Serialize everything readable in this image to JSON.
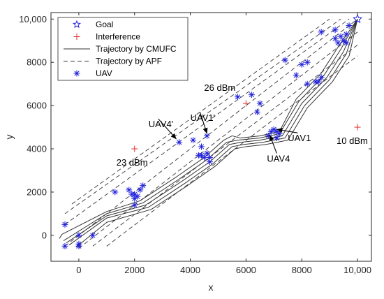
{
  "chart_data": {
    "type": "line",
    "xlabel": "x",
    "ylabel": "y",
    "xlim": [
      -1000,
      10500
    ],
    "ylim": [
      -1200,
      10300
    ],
    "xticks": [
      {
        "value": 0,
        "label": "0"
      },
      {
        "value": 2000,
        "label": "2000"
      },
      {
        "value": 4000,
        "label": "4000"
      },
      {
        "value": 6000,
        "label": "6000"
      },
      {
        "value": 8000,
        "label": "8000"
      },
      {
        "value": 10000,
        "label": "10,000"
      }
    ],
    "yticks": [
      {
        "value": 0,
        "label": "0"
      },
      {
        "value": 2000,
        "label": "2000"
      },
      {
        "value": 4000,
        "label": "4000"
      },
      {
        "value": 6000,
        "label": "6000"
      },
      {
        "value": 8000,
        "label": "8000"
      },
      {
        "value": 10000,
        "label": "10,000"
      }
    ],
    "legend": {
      "position": "top-left",
      "entries": [
        {
          "label": "Goal",
          "marker": "star",
          "color": "#1f1fdc"
        },
        {
          "label": "Interference",
          "marker": "plus",
          "color": "#e03030"
        },
        {
          "label": "Trajectory by CMUFC",
          "marker": "solid-line",
          "color": "#333333"
        },
        {
          "label": "Trajectory by APF",
          "marker": "dashed-line",
          "color": "#333333"
        },
        {
          "label": "UAV",
          "marker": "asterisk",
          "color": "#1f1fdc"
        }
      ]
    },
    "colors": {
      "uav": "#1f1fdc",
      "interference": "#e03030",
      "line": "#333333",
      "axis": "#262626"
    },
    "goal": {
      "x": 10000,
      "y": 10000
    },
    "interference": [
      {
        "x": 2000,
        "y": 4000,
        "label": "23 dBm"
      },
      {
        "x": 6000,
        "y": 6100,
        "label": "26 dBm"
      },
      {
        "x": 10000,
        "y": 5000,
        "label": "10 dBm"
      }
    ],
    "annotations": [
      {
        "text": "UAV1",
        "x": 7500,
        "y": 4350,
        "point_x": 7100,
        "point_y": 4900
      },
      {
        "text": "UAV4",
        "x": 6750,
        "y": 3400,
        "point_x": 6850,
        "point_y": 4650
      },
      {
        "text": "UAV1'",
        "x": 4000,
        "y": 5300,
        "point_x": 4600,
        "point_y": 4700
      },
      {
        "text": "UAV4'",
        "x": 2500,
        "y": 5000,
        "point_x": 3500,
        "point_y": 4450
      }
    ],
    "cmufc_trajectories": [
      [
        [
          -700,
          -150
        ],
        [
          -600,
          50
        ],
        [
          1000,
          1100
        ],
        [
          2200,
          1600
        ],
        [
          3500,
          2700
        ],
        [
          4500,
          3600
        ],
        [
          5200,
          4400
        ],
        [
          5500,
          4600
        ],
        [
          5800,
          4500
        ],
        [
          6500,
          4600
        ],
        [
          7200,
          4800
        ],
        [
          7800,
          6300
        ],
        [
          8700,
          7500
        ],
        [
          9300,
          8700
        ],
        [
          10000,
          10000
        ]
      ],
      [
        [
          -550,
          -250
        ],
        [
          1000,
          1000
        ],
        [
          2300,
          1500
        ],
        [
          3600,
          2600
        ],
        [
          4600,
          3500
        ],
        [
          5300,
          4300
        ],
        [
          5700,
          4400
        ],
        [
          6500,
          4500
        ],
        [
          7200,
          4700
        ],
        [
          7900,
          6200
        ],
        [
          8800,
          7400
        ],
        [
          9400,
          8600
        ],
        [
          10000,
          10000
        ]
      ],
      [
        [
          -450,
          -350
        ],
        [
          1000,
          900
        ],
        [
          2400,
          1400
        ],
        [
          3700,
          2500
        ],
        [
          4700,
          3400
        ],
        [
          5400,
          4200
        ],
        [
          5800,
          4300
        ],
        [
          6500,
          4400
        ],
        [
          7300,
          4600
        ],
        [
          8000,
          6100
        ],
        [
          8900,
          7300
        ],
        [
          9500,
          8500
        ],
        [
          10000,
          10000
        ]
      ],
      [
        [
          -350,
          -450
        ],
        [
          1000,
          800
        ],
        [
          2500,
          1300
        ],
        [
          3800,
          2400
        ],
        [
          4800,
          3300
        ],
        [
          5500,
          4100
        ],
        [
          5900,
          4200
        ],
        [
          6600,
          4300
        ],
        [
          7400,
          4500
        ],
        [
          8100,
          6000
        ],
        [
          9000,
          7200
        ],
        [
          9600,
          8400
        ],
        [
          10000,
          10000
        ]
      ],
      [
        [
          -100,
          -550
        ],
        [
          1000,
          600
        ],
        [
          2600,
          1200
        ],
        [
          3900,
          2300
        ],
        [
          4900,
          3200
        ],
        [
          5600,
          4000
        ],
        [
          6000,
          4100
        ],
        [
          6700,
          4200
        ],
        [
          7500,
          4400
        ],
        [
          8200,
          5900
        ],
        [
          9100,
          7100
        ],
        [
          9700,
          8300
        ],
        [
          10000,
          10000
        ]
      ]
    ],
    "apf_trajectories": [
      [
        [
          -500,
          -500
        ],
        [
          10000,
          10000
        ]
      ],
      [
        [
          -500,
          500
        ],
        [
          9700,
          10000
        ]
      ],
      [
        [
          -500,
          1000
        ],
        [
          9400,
          10000
        ]
      ],
      [
        [
          -250,
          1450
        ],
        [
          9000,
          10000
        ]
      ],
      [
        [
          500,
          -500
        ],
        [
          10000,
          8800
        ]
      ],
      [
        [
          1000,
          -500
        ],
        [
          10000,
          8300
        ]
      ],
      [
        [
          0,
          -600
        ],
        [
          10000,
          9400
        ]
      ]
    ],
    "uav_points": [
      [
        -500,
        500
      ],
      [
        -500,
        -500
      ],
      [
        0,
        0
      ],
      [
        0,
        -400
      ],
      [
        0,
        -500
      ],
      [
        500,
        0
      ],
      [
        1300,
        2000
      ],
      [
        1800,
        2100
      ],
      [
        1900,
        1900
      ],
      [
        2000,
        1400
      ],
      [
        2000,
        1700
      ],
      [
        2100,
        1800
      ],
      [
        2200,
        2100
      ],
      [
        2300,
        2300
      ],
      [
        2000,
        1900
      ],
      [
        3600,
        4300
      ],
      [
        4100,
        4400
      ],
      [
        4400,
        4100
      ],
      [
        4600,
        4600
      ],
      [
        4400,
        3700
      ],
      [
        4500,
        3600
      ],
      [
        4600,
        3800
      ],
      [
        4700,
        3600
      ],
      [
        4700,
        3400
      ],
      [
        4300,
        3700
      ],
      [
        5700,
        6400
      ],
      [
        6200,
        6500
      ],
      [
        6500,
        6100
      ],
      [
        6400,
        5700
      ],
      [
        6900,
        4800
      ],
      [
        7000,
        4900
      ],
      [
        7100,
        4800
      ],
      [
        7200,
        4700
      ],
      [
        7100,
        4500
      ],
      [
        6800,
        4600
      ],
      [
        7400,
        8100
      ],
      [
        7800,
        7400
      ],
      [
        8000,
        7900
      ],
      [
        8200,
        8000
      ],
      [
        8200,
        7000
      ],
      [
        8500,
        7100
      ],
      [
        8700,
        7300
      ],
      [
        8600,
        7100
      ],
      [
        8700,
        9400
      ],
      [
        9200,
        9500
      ],
      [
        9300,
        8900
      ],
      [
        9400,
        9200
      ],
      [
        9500,
        9000
      ],
      [
        9600,
        8900
      ],
      [
        9700,
        9700
      ],
      [
        9600,
        9300
      ],
      [
        9200,
        9100
      ]
    ]
  }
}
